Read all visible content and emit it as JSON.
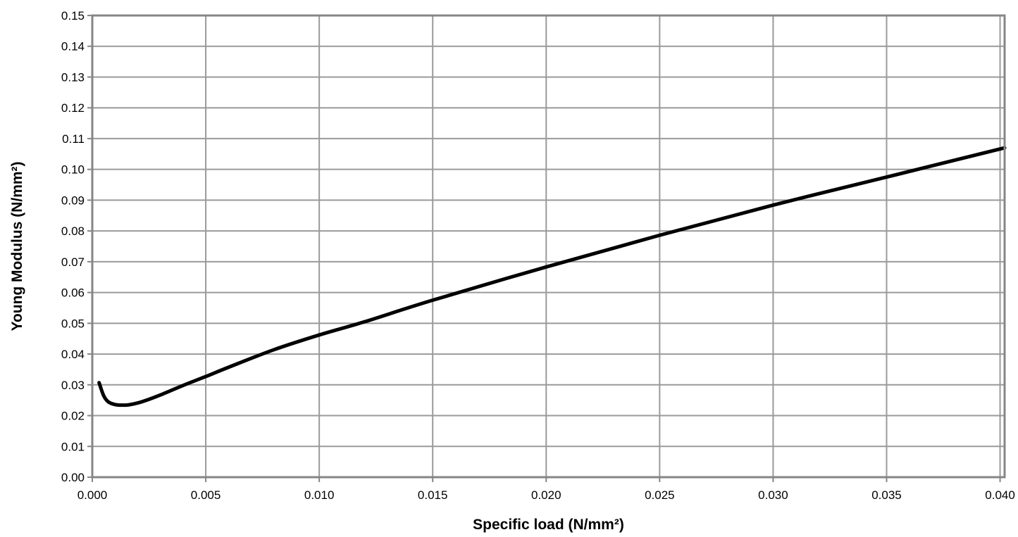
{
  "chart_data": {
    "type": "line",
    "title": "",
    "xlabel": "Specific load (N/mm²)",
    "ylabel": "Young Modulus (N/mm²)",
    "xlim": [
      0.0,
      0.0402
    ],
    "ylim": [
      0.0,
      0.15
    ],
    "grid": true,
    "legend": "none",
    "x_ticks": [
      "0.000",
      "0.005",
      "0.010",
      "0.015",
      "0.020",
      "0.025",
      "0.030",
      "0.035",
      "0.040"
    ],
    "x_tick_values": [
      0.0,
      0.005,
      0.01,
      0.015,
      0.02,
      0.025,
      0.03,
      0.035,
      0.04
    ],
    "y_ticks": [
      "0.00",
      "0.01",
      "0.02",
      "0.03",
      "0.04",
      "0.05",
      "0.06",
      "0.07",
      "0.08",
      "0.09",
      "0.10",
      "0.11",
      "0.12",
      "0.13",
      "0.14",
      "0.15"
    ],
    "y_tick_values": [
      0.0,
      0.01,
      0.02,
      0.03,
      0.04,
      0.05,
      0.06,
      0.07,
      0.08,
      0.09,
      0.1,
      0.11,
      0.12,
      0.13,
      0.14,
      0.15
    ],
    "series": [
      {
        "color": "#000000",
        "x": [
          0.0003,
          0.0005,
          0.0007,
          0.001,
          0.0013,
          0.0016,
          0.002,
          0.0025,
          0.003,
          0.004,
          0.005,
          0.006,
          0.008,
          0.01,
          0.012,
          0.015,
          0.02,
          0.025,
          0.03,
          0.035,
          0.0402
        ],
        "y": [
          0.0307,
          0.0265,
          0.0245,
          0.0236,
          0.0234,
          0.0235,
          0.0241,
          0.0253,
          0.0267,
          0.0298,
          0.0327,
          0.0357,
          0.0414,
          0.0462,
          0.0505,
          0.0575,
          0.0683,
          0.0786,
          0.0884,
          0.0975,
          0.107
        ]
      }
    ]
  }
}
